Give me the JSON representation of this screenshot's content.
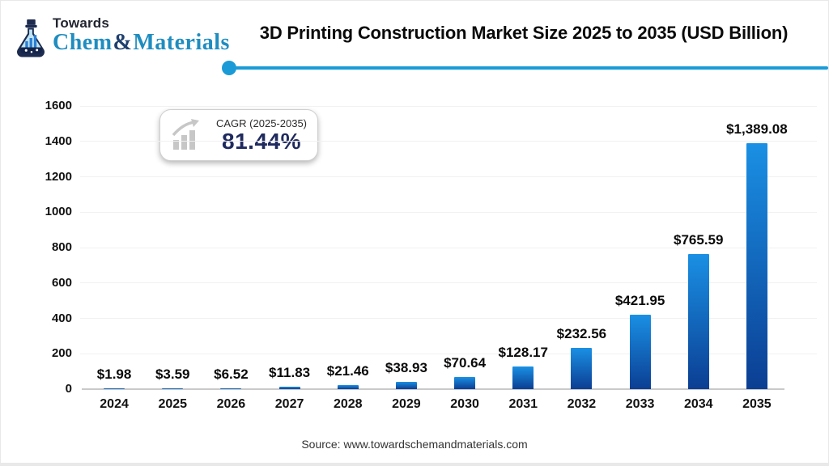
{
  "logo": {
    "tagline": "Towards",
    "brand_chem": "Chem",
    "brand_amp": "&",
    "brand_materials": "Materials"
  },
  "header": {
    "title": "3D Printing Construction Market Size 2025 to 2035 (USD Billion)"
  },
  "badge": {
    "label": "CAGR (2025-2035)",
    "value": "81.44%"
  },
  "chart_data": {
    "type": "bar",
    "title": "3D Printing Construction Market Size 2025 to 2035 (USD Billion)",
    "categories": [
      "2024",
      "2025",
      "2026",
      "2027",
      "2028",
      "2029",
      "2030",
      "2031",
      "2032",
      "2033",
      "2034",
      "2035"
    ],
    "values": [
      1.98,
      3.59,
      6.52,
      11.83,
      21.46,
      38.93,
      70.64,
      128.17,
      232.56,
      421.95,
      765.59,
      1389.08
    ],
    "value_labels": [
      "$1.98",
      "$3.59",
      "$6.52",
      "$11.83",
      "$21.46",
      "$38.93",
      "$70.64",
      "$128.17",
      "$232.56",
      "$421.95",
      "$765.59",
      "$1,389.08"
    ],
    "xlabel": "",
    "ylabel": "",
    "ylim": [
      0,
      1600
    ],
    "ytick_interval": 200,
    "grid": true,
    "legend": false,
    "bar_color_top": "#1a90e4",
    "bar_color_bottom": "#0b3e93"
  },
  "footer": {
    "source": "Source: www.towardschemandmaterials.com"
  },
  "colors": {
    "accent_line": "#1a9bd7",
    "badge_value": "#1f2a5e",
    "brand_blue": "#1f8dc0",
    "brand_navy": "#1e3f6e"
  }
}
